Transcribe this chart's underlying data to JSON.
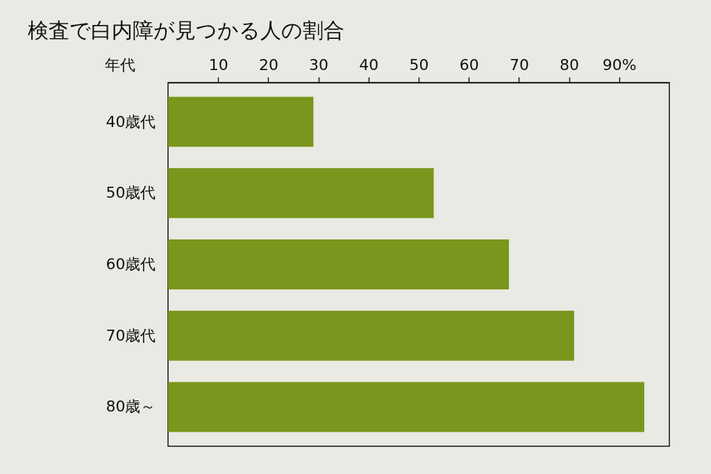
{
  "chart_data": {
    "type": "bar",
    "orientation": "horizontal",
    "title": "検査で白内障が見つかる人の割合",
    "ylabel": "年代",
    "categories": [
      "40歳代",
      "50歳代",
      "60歳代",
      "70歳代",
      "80歳～"
    ],
    "values": [
      29,
      53,
      68,
      81,
      95
    ],
    "color": "#7a961c",
    "xlim": [
      0,
      100
    ],
    "xticks": [
      10,
      20,
      30,
      40,
      50,
      60,
      70,
      80,
      {
        "value": 90,
        "label": "90%"
      }
    ]
  }
}
